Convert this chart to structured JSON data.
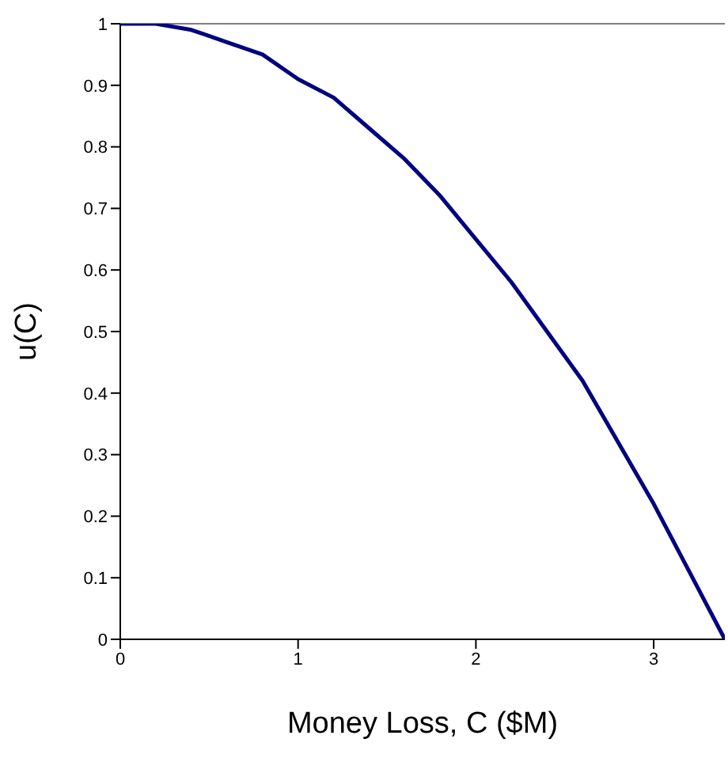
{
  "chart_data": {
    "type": "line",
    "xlabel": "Money Loss, C ($M)",
    "ylabel": "u(C)",
    "x": [
      0,
      0.2,
      0.4,
      0.6,
      0.8,
      1,
      1.2,
      1.4,
      1.6,
      1.8,
      2,
      2.2,
      2.4,
      2.6,
      2.8,
      3,
      3.2,
      3.4
    ],
    "series": [
      {
        "color": "#000080",
        "values": [
          1,
          1.0,
          0.99,
          0.97,
          0.95,
          0.91,
          0.88,
          0.83,
          0.78,
          0.72,
          0.65,
          0.58,
          0.5,
          0.42,
          0.32,
          0.22,
          0.11,
          0
        ]
      }
    ],
    "xlim": [
      0,
      3.4
    ],
    "xticks": [
      0,
      1,
      2,
      3
    ],
    "ylim": [
      0,
      1
    ],
    "yticks": [
      0,
      0.1,
      0.2,
      0.3,
      0.4,
      0.5,
      0.6,
      0.7,
      0.8,
      0.9,
      1
    ],
    "ref_lines": [
      {
        "axis": "y",
        "value": 1,
        "color": "#808080"
      }
    ],
    "grid": false,
    "legend": false,
    "marker": "none",
    "line_style": "solid"
  }
}
